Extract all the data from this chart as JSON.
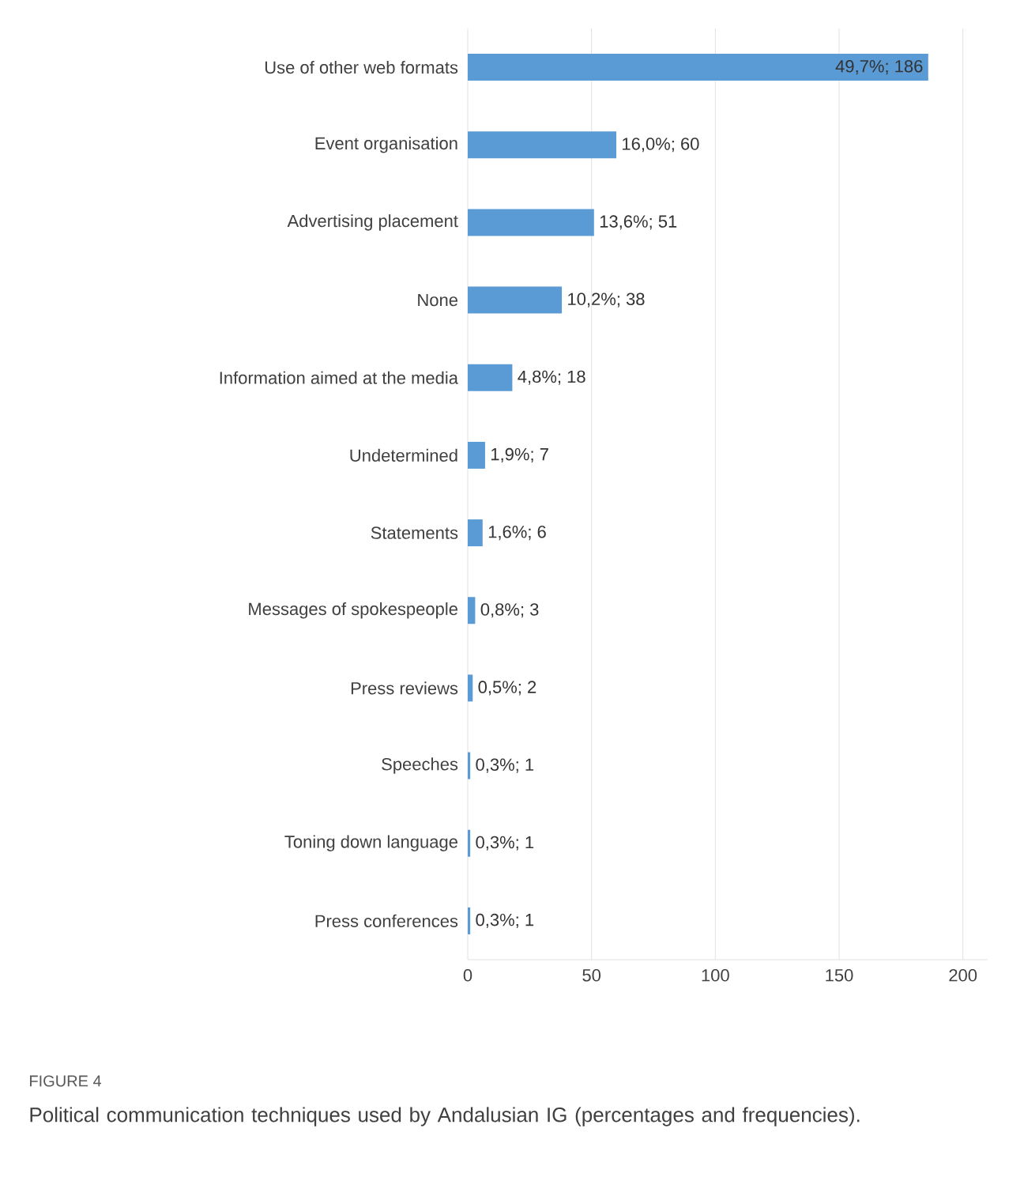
{
  "chart_data": {
    "type": "bar",
    "orientation": "horizontal",
    "categories": [
      "Use of other web formats",
      "Event organisation",
      "Advertising placement",
      "None",
      "Information aimed at the media",
      "Undetermined",
      "Statements",
      "Messages of spokespeople",
      "Press reviews",
      "Speeches",
      "Toning down language",
      "Press conferences"
    ],
    "values": [
      186,
      60,
      51,
      38,
      18,
      7,
      6,
      3,
      2,
      1,
      1,
      1
    ],
    "value_labels": [
      "49,7%; 186",
      "16,0%; 60",
      "13,6%; 51",
      "10,2%; 38",
      "4,8%; 18",
      "1,9%; 7",
      "1,6%; 6",
      "0,8%; 3",
      "0,5%; 2",
      "0,3%; 1",
      "0,3%; 1",
      "0,3%; 1"
    ],
    "color": "#5b9bd5",
    "xlim": [
      0,
      210
    ],
    "xticks": [
      0,
      50,
      100,
      150,
      200
    ],
    "grid": "x",
    "annotations": [
      "FIGURE 4",
      "Political communication techniques used by Andalusian IG (percentages and frequencies)."
    ]
  }
}
